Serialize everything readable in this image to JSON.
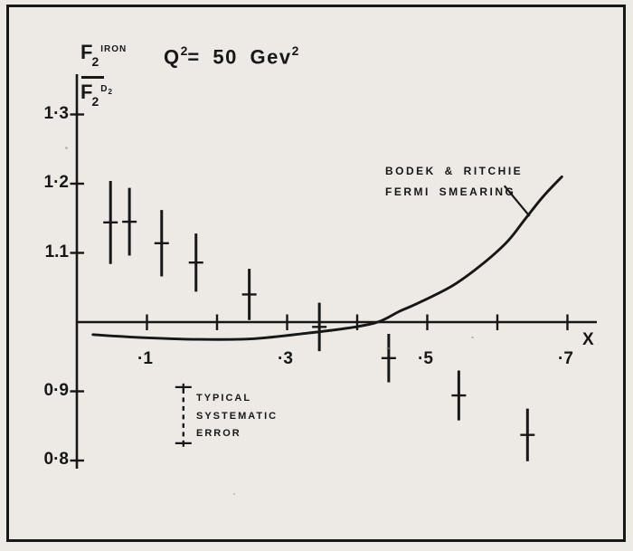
{
  "page": {
    "background": "#edeae5",
    "ink": "#171717",
    "frame_color": "#171717"
  },
  "title": {
    "q": "Q",
    "q_sup": "2",
    "eq": "= 50 Gev",
    "unit_sup": "2"
  },
  "y_axis_label": {
    "num_f": "F",
    "num_sub": "2",
    "num_sup": "IRON",
    "den_f": "F",
    "den_sub": "2",
    "den_sup": "D",
    "den_sup_sub": "2"
  },
  "x_axis_letter": "X",
  "curve_label": {
    "line1": "BODEK & RITCHIE",
    "line2": "FERMI SMEARING"
  },
  "systematic_note": {
    "line1": "TYPICAL",
    "line2": "SYSTEMATIC",
    "line3": "ERROR"
  },
  "chart_data": {
    "type": "scatter",
    "title": "Q^2 = 50 Gev^2",
    "xlabel": "X",
    "ylabel": "F2^IRON / F2^D2",
    "xlim": [
      0,
      0.742
    ],
    "ylim": [
      0.788,
      1.358
    ],
    "grid": false,
    "legend_position": "none",
    "x_ticks": [
      0.1,
      0.2,
      0.3,
      0.4,
      0.5,
      0.6,
      0.7
    ],
    "y_ticks": [
      1.3,
      1.2,
      1.1,
      0.9,
      0.8
    ],
    "x_tick_labels": [
      {
        "value": 0.1,
        "label": "·1"
      },
      {
        "value": 0.3,
        "label": "·3"
      },
      {
        "value": 0.5,
        "label": "·5"
      },
      {
        "value": 0.7,
        "label": "·7"
      }
    ],
    "y_tick_labels": [
      {
        "value": 1.3,
        "label": "1·3"
      },
      {
        "value": 1.2,
        "label": "1·2"
      },
      {
        "value": 1.1,
        "label": "1.1"
      },
      {
        "value": 0.9,
        "label": "0·9"
      },
      {
        "value": 0.8,
        "label": "0·8"
      }
    ],
    "series": [
      {
        "name": "F2(iron)/F2(D2) measured ratio",
        "type": "errorbar",
        "x": [
          0.048,
          0.075,
          0.121,
          0.17,
          0.246,
          0.346,
          0.445,
          0.545,
          0.643
        ],
        "y": [
          1.144,
          1.145,
          1.114,
          1.086,
          1.04,
          0.993,
          0.948,
          0.894,
          0.837
        ],
        "yerr": [
          0.06,
          0.049,
          0.048,
          0.042,
          0.037,
          0.035,
          0.035,
          0.036,
          0.038
        ]
      },
      {
        "name": "Bodek & Ritchie Fermi smearing",
        "type": "line",
        "x": [
          0.023,
          0.084,
          0.174,
          0.252,
          0.329,
          0.397,
          0.432,
          0.461,
          0.484,
          0.535,
          0.574,
          0.613,
          0.639,
          0.665,
          0.692
        ],
        "y": [
          0.982,
          0.978,
          0.975,
          0.976,
          0.984,
          0.993,
          1.001,
          1.016,
          1.026,
          1.052,
          1.08,
          1.115,
          1.148,
          1.181,
          1.21
        ]
      }
    ],
    "annotations": [
      {
        "name": "typical-systematic-error",
        "text": [
          "TYPICAL",
          "SYSTEMATIC",
          "ERROR"
        ],
        "x": 0.152,
        "y_top": 0.906,
        "y_bottom": 0.825
      },
      {
        "name": "curve-label",
        "text": [
          "BODEK & RITCHIE",
          "FERMI SMEARING"
        ],
        "pointer": {
          "x1": 0.61,
          "y1": 1.197,
          "x2": 0.646,
          "y2": 1.153
        }
      }
    ]
  }
}
